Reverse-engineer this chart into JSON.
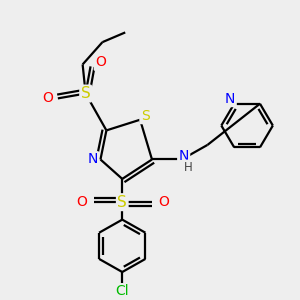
{
  "bg_color": "#eeeeee",
  "atom_colors": {
    "S": "#cccc00",
    "N": "#0000ff",
    "O": "#ff0000",
    "Cl": "#00bb00",
    "C": "#000000",
    "H": "#444444"
  }
}
